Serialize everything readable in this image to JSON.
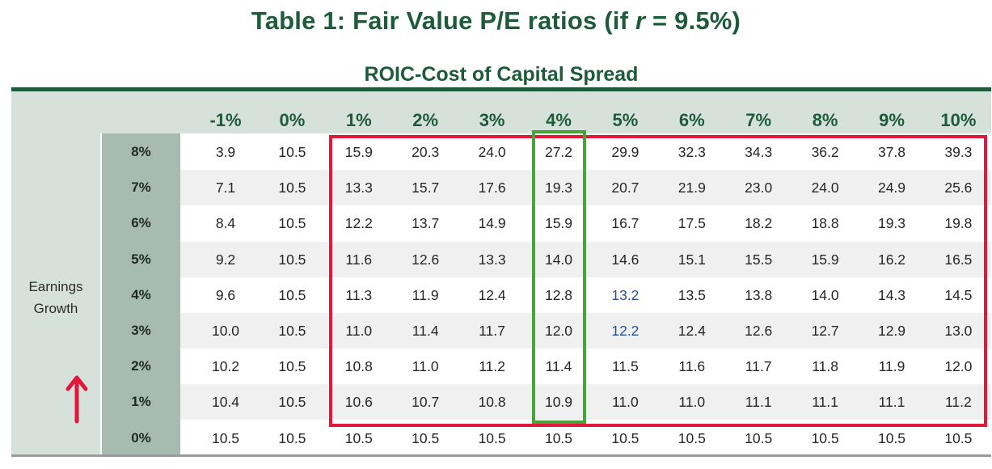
{
  "title_prefix": "Table 1: Fair Value P/E ratios (if ",
  "title_var": "r",
  "title_suffix": " = 9.5%)",
  "subtitle": "ROIC-Cost of Capital Spread",
  "row_axis_label_line1": "Earnings",
  "row_axis_label_line2": "Growth",
  "colors": {
    "accent_green": "#1e5b3a",
    "highlight_red": "#e2173a",
    "highlight_green": "#46a43a",
    "blue_values": "#2a4f97"
  },
  "icons": {
    "arrow": "up-arrow"
  },
  "chart_data": {
    "type": "table",
    "title": "Table 1: Fair Value P/E ratios (if r = 9.5%)",
    "column_axis_label": "ROIC-Cost of Capital Spread",
    "row_axis_label": "Earnings Growth",
    "columns": [
      "-1%",
      "0%",
      "1%",
      "2%",
      "3%",
      "4%",
      "5%",
      "6%",
      "7%",
      "8%",
      "9%",
      "10%"
    ],
    "rows": [
      {
        "label": "8%",
        "values": [
          "3.9",
          "10.5",
          "15.9",
          "20.3",
          "24.0",
          "27.2",
          "29.9",
          "32.3",
          "34.3",
          "36.2",
          "37.8",
          "39.3"
        ]
      },
      {
        "label": "7%",
        "values": [
          "7.1",
          "10.5",
          "13.3",
          "15.7",
          "17.6",
          "19.3",
          "20.7",
          "21.9",
          "23.0",
          "24.0",
          "24.9",
          "25.6"
        ]
      },
      {
        "label": "6%",
        "values": [
          "8.4",
          "10.5",
          "12.2",
          "13.7",
          "14.9",
          "15.9",
          "16.7",
          "17.5",
          "18.2",
          "18.8",
          "19.3",
          "19.8"
        ]
      },
      {
        "label": "5%",
        "values": [
          "9.2",
          "10.5",
          "11.6",
          "12.6",
          "13.3",
          "14.0",
          "14.6",
          "15.1",
          "15.5",
          "15.9",
          "16.2",
          "16.5"
        ]
      },
      {
        "label": "4%",
        "values": [
          "9.6",
          "10.5",
          "11.3",
          "11.9",
          "12.4",
          "12.8",
          "13.2",
          "13.5",
          "13.8",
          "14.0",
          "14.3",
          "14.5"
        ]
      },
      {
        "label": "3%",
        "values": [
          "10.0",
          "10.5",
          "11.0",
          "11.4",
          "11.7",
          "12.0",
          "12.2",
          "12.4",
          "12.6",
          "12.7",
          "12.9",
          "13.0"
        ]
      },
      {
        "label": "2%",
        "values": [
          "10.2",
          "10.5",
          "10.8",
          "11.0",
          "11.2",
          "11.4",
          "11.5",
          "11.6",
          "11.7",
          "11.8",
          "11.9",
          "12.0"
        ]
      },
      {
        "label": "1%",
        "values": [
          "10.4",
          "10.5",
          "10.6",
          "10.7",
          "10.8",
          "10.9",
          "11.0",
          "11.0",
          "11.1",
          "11.1",
          "11.1",
          "11.2"
        ]
      },
      {
        "label": "0%",
        "values": [
          "10.5",
          "10.5",
          "10.5",
          "10.5",
          "10.5",
          "10.5",
          "10.5",
          "10.5",
          "10.5",
          "10.5",
          "10.5",
          "10.5"
        ]
      }
    ],
    "blue_cells": [
      [
        4,
        6
      ],
      [
        5,
        6
      ]
    ],
    "highlight_red": {
      "rows": [
        "8%",
        "1%"
      ],
      "columns": [
        "1%",
        "10%"
      ]
    },
    "highlight_green": {
      "column": "4%",
      "rows": [
        "8%",
        "1%"
      ]
    }
  }
}
